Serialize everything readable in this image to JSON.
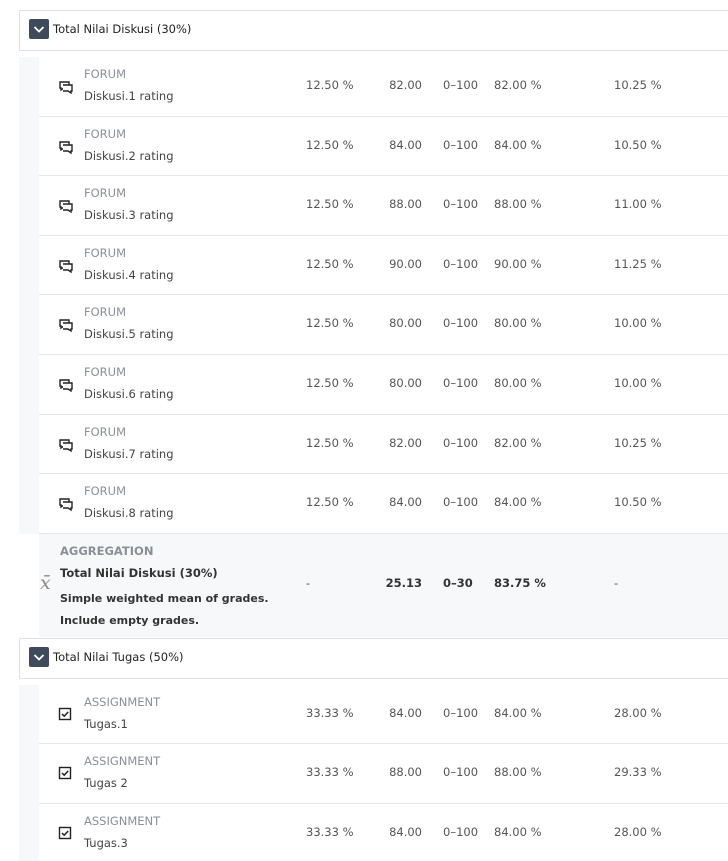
{
  "sections": [
    {
      "title": "Total Nilai Diskusi (30%)",
      "items": [
        {
          "type": "FORUM",
          "name": "Diskusi.1 rating",
          "weight": "12.50 %",
          "grade": "82.00",
          "range": "0–100",
          "percentage": "82.00 %",
          "contribution": "10.25 %"
        },
        {
          "type": "FORUM",
          "name": "Diskusi.2 rating",
          "weight": "12.50 %",
          "grade": "84.00",
          "range": "0–100",
          "percentage": "84.00 %",
          "contribution": "10.50 %"
        },
        {
          "type": "FORUM",
          "name": "Diskusi.3 rating",
          "weight": "12.50 %",
          "grade": "88.00",
          "range": "0–100",
          "percentage": "88.00 %",
          "contribution": "11.00 %"
        },
        {
          "type": "FORUM",
          "name": "Diskusi.4 rating",
          "weight": "12.50 %",
          "grade": "90.00",
          "range": "0–100",
          "percentage": "90.00 %",
          "contribution": "11.25 %"
        },
        {
          "type": "FORUM",
          "name": "Diskusi.5 rating",
          "weight": "12.50 %",
          "grade": "80.00",
          "range": "0–100",
          "percentage": "80.00 %",
          "contribution": "10.00 %"
        },
        {
          "type": "FORUM",
          "name": "Diskusi.6 rating",
          "weight": "12.50 %",
          "grade": "80.00",
          "range": "0–100",
          "percentage": "80.00 %",
          "contribution": "10.00 %"
        },
        {
          "type": "FORUM",
          "name": "Diskusi.7 rating",
          "weight": "12.50 %",
          "grade": "82.00",
          "range": "0–100",
          "percentage": "82.00 %",
          "contribution": "10.25 %"
        },
        {
          "type": "FORUM",
          "name": "Diskusi.8 rating",
          "weight": "12.50 %",
          "grade": "84.00",
          "range": "0–100",
          "percentage": "84.00 %",
          "contribution": "10.50 %"
        }
      ],
      "aggregation": {
        "type": "AGGREGATION",
        "name": "Total Nilai Diskusi (30%)",
        "description": "Simple weighted mean of grades. Include empty grades.",
        "weight": "-",
        "grade": "25.13",
        "range": "0–30",
        "percentage": "83.75 %",
        "contribution": "-"
      }
    },
    {
      "title": "Total Nilai Tugas (50%)",
      "items": [
        {
          "type": "ASSIGNMENT",
          "name": "Tugas.1",
          "weight": "33.33 %",
          "grade": "84.00",
          "range": "0–100",
          "percentage": "84.00 %",
          "contribution": "28.00 %"
        },
        {
          "type": "ASSIGNMENT",
          "name": "Tugas 2",
          "weight": "33.33 %",
          "grade": "88.00",
          "range": "0–100",
          "percentage": "88.00 %",
          "contribution": "29.33 %"
        },
        {
          "type": "ASSIGNMENT",
          "name": "Tugas.3",
          "weight": "33.33 %",
          "grade": "84.00",
          "range": "0–100",
          "percentage": "84.00 %",
          "contribution": "28.00 %"
        }
      ]
    }
  ]
}
